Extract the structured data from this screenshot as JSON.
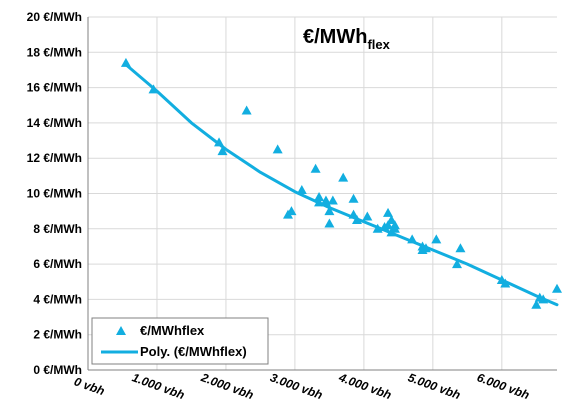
{
  "chart_data": {
    "type": "scatter",
    "title_main": "€/MWh",
    "title_sub": "flex",
    "xlim": [
      0,
      6800
    ],
    "ylim": [
      0,
      20
    ],
    "x_ticks": [
      0,
      1000,
      2000,
      3000,
      4000,
      5000,
      6000
    ],
    "x_tick_labels": [
      "0 vbh",
      "1.000 vbh",
      "2.000 vbh",
      "3.000 vbh",
      "4.000 vbh",
      "5.000 vbh",
      "6.000 vbh"
    ],
    "y_ticks": [
      0,
      2,
      4,
      6,
      8,
      10,
      12,
      14,
      16,
      18,
      20
    ],
    "y_tick_labels": [
      "0 €/MWh",
      "2 €/MWh",
      "4 €/MWh",
      "6 €/MWh",
      "8 €/MWh",
      "10 €/MWh",
      "12 €/MWh",
      "14 €/MWh",
      "16 €/MWh",
      "18 €/MWh",
      "20 €/MWh"
    ],
    "grid": true,
    "legend_position": "bottom-left",
    "colors": {
      "series": "#12AEE0",
      "grid": "#d9d9d9",
      "axis": "#808080",
      "text": "#000000"
    },
    "series": [
      {
        "name": "€/MWhflex",
        "marker": "triangle",
        "x": [
          550,
          950,
          1900,
          1950,
          2300,
          2750,
          2950,
          2900,
          3100,
          3300,
          3350,
          3350,
          3450,
          3450,
          3500,
          3500,
          3550,
          3700,
          3850,
          3850,
          3900,
          4050,
          4200,
          4300,
          4350,
          4400,
          4400,
          4350,
          4450,
          4450,
          4700,
          4850,
          4850,
          4900,
          5050,
          5350,
          5400,
          6000,
          6050,
          6500,
          6550,
          6600,
          6800
        ],
        "y": [
          17.4,
          15.9,
          12.9,
          12.4,
          14.7,
          12.5,
          9.0,
          8.8,
          10.2,
          11.4,
          9.8,
          9.5,
          9.6,
          9.5,
          9.0,
          8.3,
          9.6,
          10.9,
          9.7,
          8.8,
          8.5,
          8.7,
          8.0,
          8.1,
          8.9,
          8.5,
          7.8,
          8.2,
          8.0,
          8.2,
          7.4,
          7.0,
          6.8,
          6.9,
          7.4,
          6.0,
          6.9,
          5.1,
          4.9,
          3.7,
          4.1,
          4.0,
          4.6
        ]
      },
      {
        "name": "Poly. (€/MWhflex)",
        "type": "line",
        "x": [
          550,
          1000,
          1500,
          2000,
          2500,
          3000,
          3500,
          4000,
          4500,
          5000,
          5500,
          6000,
          6500,
          6800
        ],
        "y": [
          17.3,
          15.8,
          14.0,
          12.5,
          11.2,
          10.1,
          9.2,
          8.4,
          7.6,
          6.8,
          6.0,
          5.1,
          4.2,
          3.7
        ]
      }
    ]
  }
}
